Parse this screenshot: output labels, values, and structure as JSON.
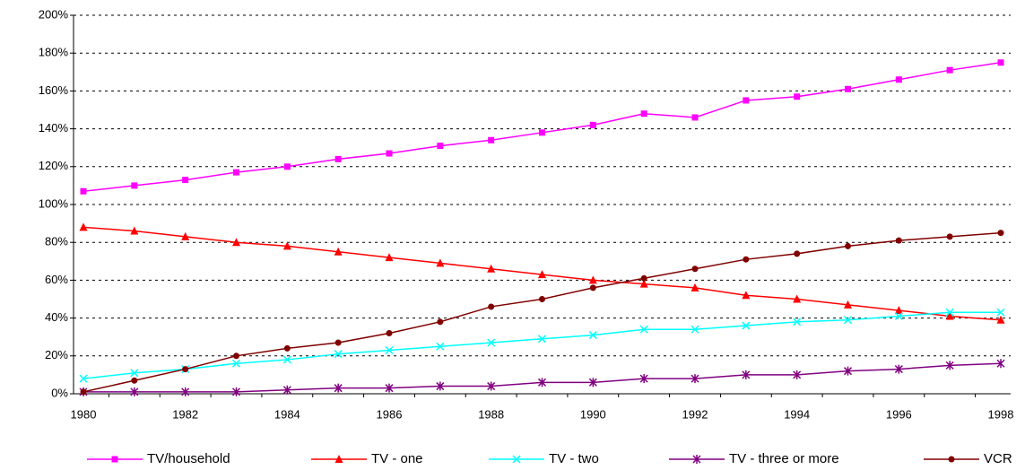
{
  "chart_data": {
    "type": "line",
    "categories": [
      "1980",
      null,
      "1982",
      null,
      "1984",
      null,
      "1986",
      null,
      "1988",
      null,
      "1990",
      null,
      "1992",
      null,
      "1994",
      null,
      "1996",
      null,
      "1998"
    ],
    "ylim": [
      0,
      200
    ],
    "yticks": [
      {
        "value": 0,
        "label": "0%"
      },
      {
        "value": 20,
        "label": "20%"
      },
      {
        "value": 40,
        "label": "40%"
      },
      {
        "value": 60,
        "label": "60%"
      },
      {
        "value": 80,
        "label": "80%"
      },
      {
        "value": 100,
        "label": "100%"
      },
      {
        "value": 120,
        "label": "120%"
      },
      {
        "value": 140,
        "label": "140%"
      },
      {
        "value": 160,
        "label": "160%"
      },
      {
        "value": 180,
        "label": "180%"
      },
      {
        "value": 200,
        "label": "200%"
      }
    ],
    "grid": true,
    "legend": "bottom",
    "series": [
      {
        "name": "TV/household",
        "color": "#ff00ff",
        "marker": "square",
        "values": [
          107,
          110,
          113,
          117,
          120,
          124,
          127,
          131,
          134,
          138,
          142,
          148,
          146,
          155,
          157,
          161,
          166,
          171,
          175
        ]
      },
      {
        "name": "TV - one",
        "color": "#ff0000",
        "marker": "triangle",
        "values": [
          88,
          86,
          83,
          80,
          78,
          75,
          72,
          69,
          66,
          63,
          60,
          58,
          56,
          52,
          50,
          47,
          44,
          41,
          39
        ]
      },
      {
        "name": "TV - two",
        "color": "#00ffff",
        "marker": "x",
        "values": [
          8,
          11,
          13,
          16,
          18,
          21,
          23,
          25,
          27,
          29,
          31,
          34,
          34,
          36,
          38,
          39,
          41,
          43,
          43
        ]
      },
      {
        "name": "TV - three or more",
        "color": "#800080",
        "marker": "star",
        "values": [
          1,
          1,
          1,
          1,
          2,
          3,
          3,
          4,
          4,
          6,
          6,
          8,
          8,
          10,
          10,
          12,
          13,
          15,
          16
        ]
      },
      {
        "name": "VCR",
        "color": "#800000",
        "marker": "circle",
        "values": [
          1,
          7,
          13,
          20,
          24,
          27,
          32,
          38,
          46,
          50,
          56,
          61,
          66,
          71,
          74,
          78,
          81,
          83,
          85
        ]
      }
    ]
  }
}
